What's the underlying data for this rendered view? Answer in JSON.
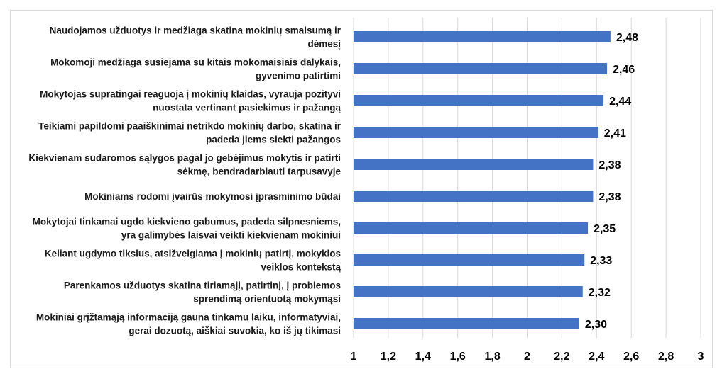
{
  "colors": {
    "bar": "#4472C4",
    "grid": "#d9d9d9",
    "text": "#000000"
  },
  "chart_data": {
    "type": "bar",
    "orientation": "horizontal",
    "title": "",
    "xlabel": "",
    "ylabel": "",
    "xlim": [
      1,
      3
    ],
    "grid": true,
    "legend": "none",
    "x_ticks": [
      "1",
      "1,2",
      "1,4",
      "1,6",
      "1,8",
      "2",
      "2,2",
      "2,4",
      "2,6",
      "2,8",
      "3"
    ],
    "categories": [
      [
        "Naudojamos užduotys ir medžiaga skatina mokinių smalsumą ir",
        "dėmesį"
      ],
      [
        "Mokomoji medžiaga susiejama su kitais mokomaisiais dalykais,",
        "gyvenimo patirtimi"
      ],
      [
        "Mokytojas supratingai reaguoja į mokinių klaidas, vyrauja pozityvi",
        "nuostata vertinant pasiekimus ir pažangą"
      ],
      [
        "Teikiami papildomi paaiškinimai netrikdo mokinių darbo, skatina ir",
        "padeda jiems siekti pažangos"
      ],
      [
        "Kiekvienam sudaromos sąlygos pagal jo gebėjimus mokytis ir patirti",
        "sėkmę, bendradarbiauti tarpusavyje"
      ],
      [
        "Mokiniams rodomi įvairūs mokymosi įprasminimo būdai"
      ],
      [
        "Mokytojai tinkamai ugdo kiekvieno gabumus, padeda silpnesniems,",
        "yra galimybės laisvai veikti kiekvienam mokiniui"
      ],
      [
        "Keliant ugdymo tikslus, atsižvelgiama į mokinių patirtį, mokyklos",
        "veiklos kontekstą"
      ],
      [
        "Parenkamos užduotys skatina tiriamąjį, patirtinį, į problemos",
        "sprendimą orientuotą mokymąsi"
      ],
      [
        "Mokiniai grįžtamąją informaciją gauna tinkamu laiku, informatyviai,",
        "gerai dozuotą, aiškiai suvokia, ko iš jų tikimasi"
      ]
    ],
    "values": [
      2.48,
      2.46,
      2.44,
      2.41,
      2.38,
      2.38,
      2.35,
      2.33,
      2.32,
      2.3
    ],
    "value_labels": [
      "2,48",
      "2,46",
      "2,44",
      "2,41",
      "2,38",
      "2,38",
      "2,35",
      "2,33",
      "2,32",
      "2,30"
    ]
  }
}
